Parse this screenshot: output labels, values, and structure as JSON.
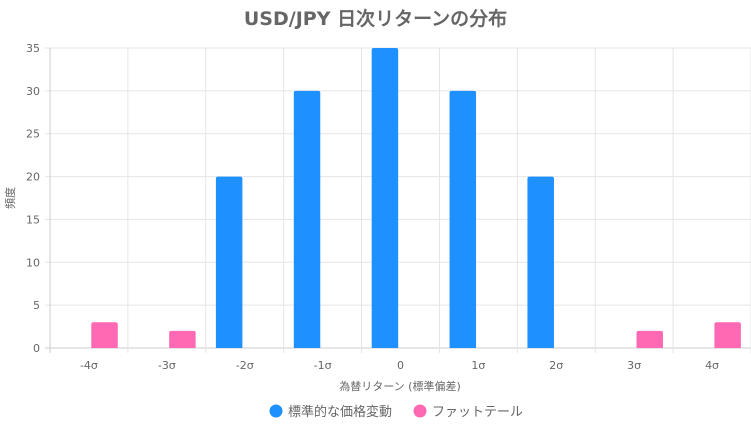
{
  "chart_data": {
    "type": "bar",
    "title": "USD/JPY 日次リターンの分布",
    "xlabel": "為替リターン (標準偏差)",
    "ylabel": "頻度",
    "categories": [
      "-4σ",
      "-3σ",
      "-2σ",
      "-1σ",
      "0",
      "1σ",
      "2σ",
      "3σ",
      "4σ"
    ],
    "series": [
      {
        "name": "標準的な価格変動",
        "color": "#1e90ff",
        "values": [
          0,
          0,
          20,
          30,
          35,
          30,
          20,
          0,
          0
        ]
      },
      {
        "name": "ファットテール",
        "color": "#ff69b4",
        "values": [
          3,
          2,
          0,
          0,
          0,
          0,
          0,
          2,
          3
        ]
      }
    ],
    "ylim": [
      0,
      35
    ],
    "yticks": [
      0,
      5,
      10,
      15,
      20,
      25,
      30,
      35
    ],
    "grid": true,
    "legend": "bottom"
  }
}
